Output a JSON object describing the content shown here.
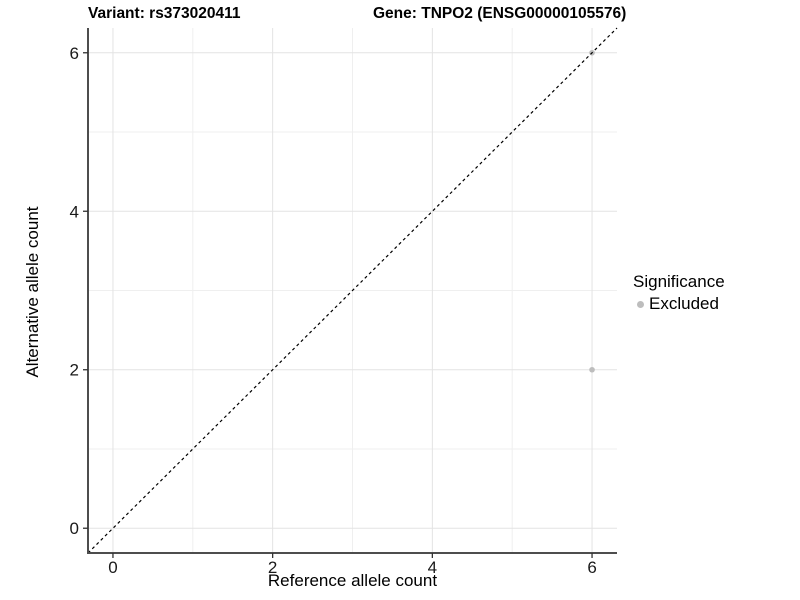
{
  "chart_data": {
    "type": "scatter",
    "title_left": "Variant: rs373020411",
    "title_right": "Gene: TNPO2 (ENSG00000105576)",
    "xlabel": "Reference allele count",
    "ylabel": "Alternative allele count",
    "xlim": [
      -0.3125,
      6.3125
    ],
    "ylim": [
      -0.3125,
      6.3125
    ],
    "x_ticks": [
      0,
      2,
      4,
      6
    ],
    "y_ticks": [
      0,
      2,
      4,
      6
    ],
    "x_minor_ticks": [
      1,
      3,
      5
    ],
    "y_minor_ticks": [
      1,
      3,
      5
    ],
    "grid": true,
    "panel_background": "#ffffff",
    "major_grid_color": "#e3e3e3",
    "minor_grid_color": "#efefef",
    "axis_line_color": "#4d4d4d",
    "tick_color": "#333333",
    "reference_line": {
      "style": "dashed",
      "color": "#000000",
      "from": [
        -0.3125,
        -0.3125
      ],
      "to": [
        6.3125,
        6.3125
      ]
    },
    "series": [
      {
        "name": "Excluded",
        "color": "#bdbdbd",
        "points": [
          {
            "x": 6,
            "y": 2
          },
          {
            "x": 6,
            "y": 6
          }
        ]
      }
    ],
    "legend": {
      "title": "Significance",
      "position": "right",
      "items": [
        {
          "label": "Excluded",
          "color": "#bdbdbd"
        }
      ]
    }
  }
}
